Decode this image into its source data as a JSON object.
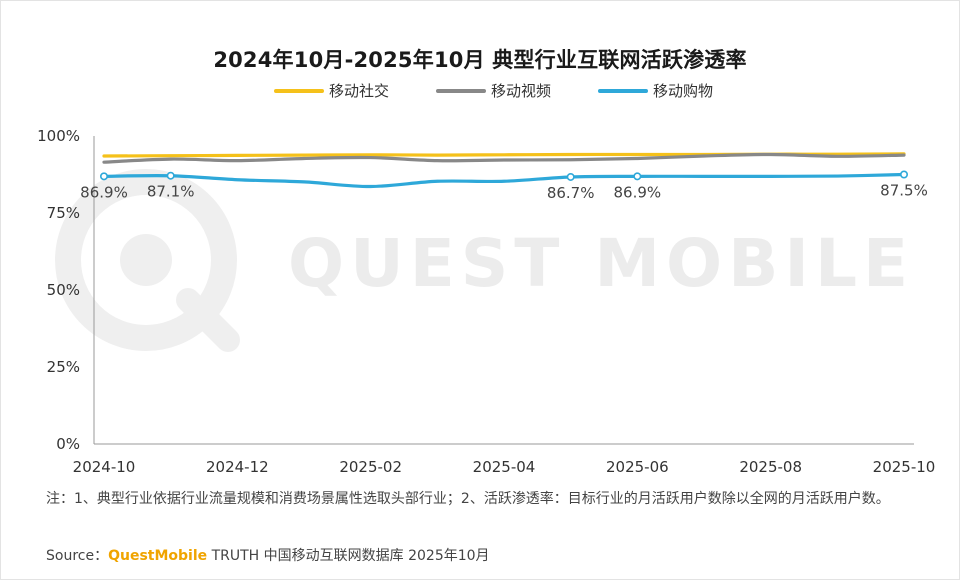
{
  "source": {
    "prefix": "Source：",
    "brand": "QuestMobile",
    "suffix": " TRUTH 中国移动互联网数据库 2025年10月"
  },
  "note": "注：1、典型行业依据行业流量规模和消费场景属性选取头部行业；2、活跃渗透率：目标行业的月活跃用户数除以全网的月活跃用户数。",
  "watermark": "QUEST MOBILE",
  "chart_data": {
    "type": "line",
    "title": "2024年10月-2025年10月 典型行业互联网活跃渗透率",
    "x": [
      "2024-10",
      "2024-11",
      "2024-12",
      "2025-01",
      "2025-02",
      "2025-03",
      "2025-04",
      "2025-05",
      "2025-06",
      "2025-07",
      "2025-08",
      "2025-09",
      "2025-10"
    ],
    "x_tick_labels": [
      "2024-10",
      "2024-12",
      "2025-02",
      "2025-04",
      "2025-06",
      "2025-08",
      "2025-10"
    ],
    "y_tick_labels": [
      "0%",
      "25%",
      "50%",
      "75%",
      "100%"
    ],
    "ylim": [
      0,
      100
    ],
    "legend_position": "top",
    "series": [
      {
        "name": "移动社交",
        "color": "#f5c11a",
        "values": [
          93.5,
          93.6,
          93.7,
          93.8,
          93.9,
          93.8,
          93.9,
          94.0,
          94.0,
          94.0,
          94.1,
          94.1,
          94.2
        ]
      },
      {
        "name": "移动视频",
        "color": "#888888",
        "values": [
          91.5,
          92.5,
          92.0,
          92.7,
          93.0,
          92.0,
          92.2,
          92.3,
          92.7,
          93.5,
          94.0,
          93.4,
          93.8
        ]
      },
      {
        "name": "移动购物",
        "color": "#2ea8d9",
        "values": [
          86.9,
          87.1,
          85.8,
          85.1,
          83.6,
          85.3,
          85.3,
          86.7,
          86.9,
          86.9,
          86.9,
          87.0,
          87.5
        ],
        "labels": {
          "0": "86.9%",
          "1": "87.1%",
          "7": "86.7%",
          "8": "86.9%",
          "12": "87.5%"
        }
      }
    ]
  }
}
